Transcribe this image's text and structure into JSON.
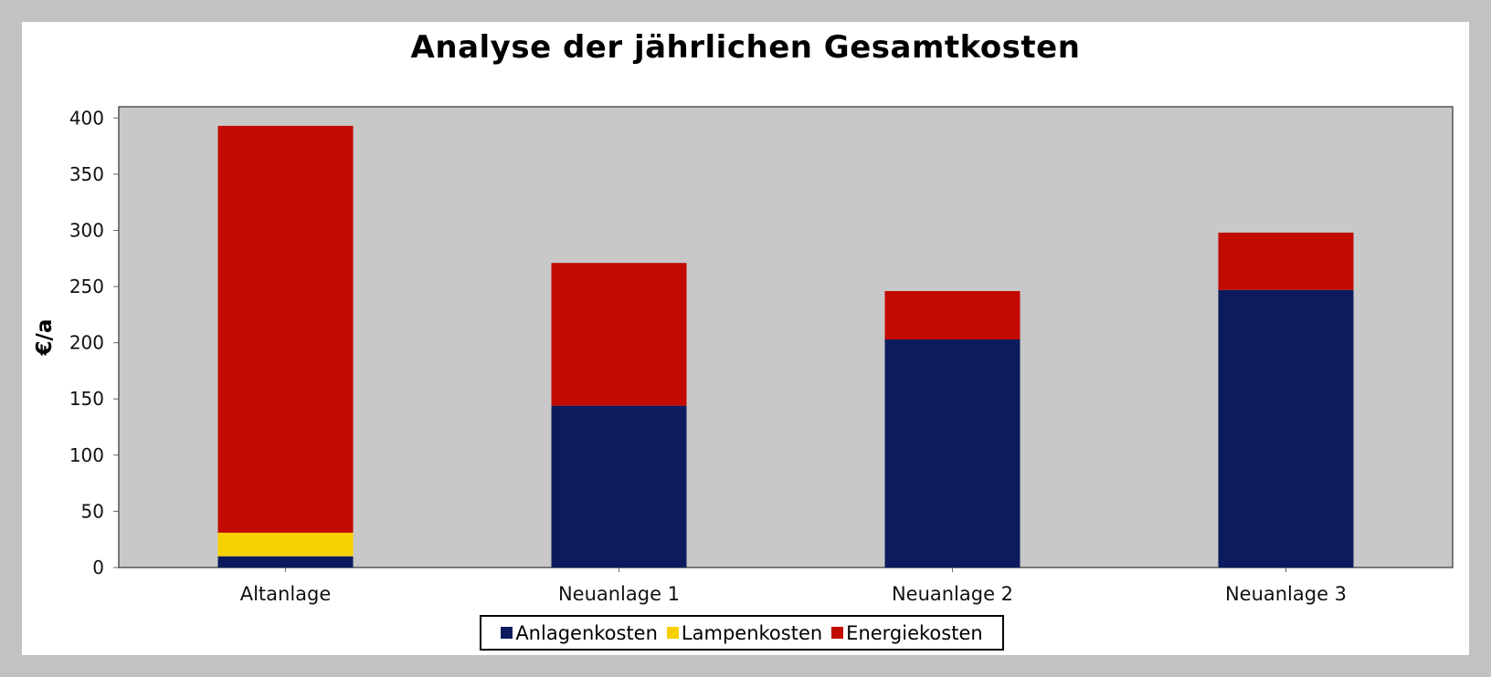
{
  "chart_data": {
    "type": "bar",
    "stacked": true,
    "title": "Analyse der jährlichen Gesamtkosten",
    "xlabel": "",
    "ylabel": "€/a",
    "ylim": [
      0,
      410
    ],
    "yticks": [
      0,
      50,
      100,
      150,
      200,
      250,
      300,
      350,
      400
    ],
    "grid": false,
    "legend_position": "bottom",
    "categories": [
      "Altanlage",
      "Neuanlage 1",
      "Neuanlage 2",
      "Neuanlage 3"
    ],
    "series": [
      {
        "name": "Anlagenkosten",
        "color": "#0c1b5e",
        "values": [
          10,
          144,
          203,
          247
        ]
      },
      {
        "name": "Lampenkosten",
        "color": "#f7d000",
        "values": [
          21,
          0,
          0,
          0
        ]
      },
      {
        "name": "Energiekosten",
        "color": "#c20a00",
        "values": [
          362,
          127,
          43,
          51
        ]
      }
    ]
  }
}
